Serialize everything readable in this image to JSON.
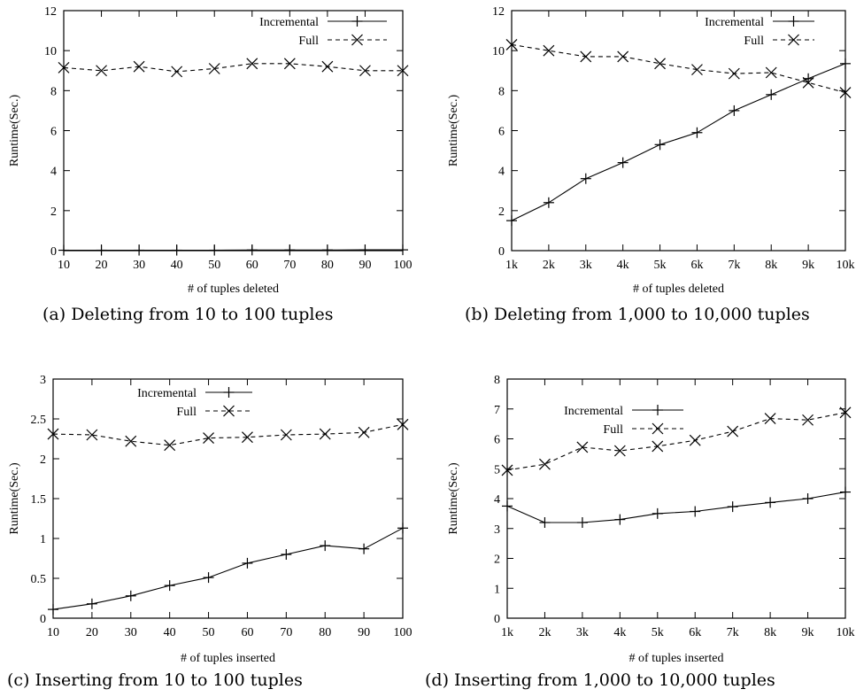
{
  "chart_data": [
    {
      "type": "line",
      "caption": "(a) Deleting from 10 to 100 tuples",
      "xlabel": "# of tuples deleted",
      "ylabel": "Runtime(Sec.)",
      "categories": [
        "10",
        "20",
        "30",
        "40",
        "50",
        "60",
        "70",
        "80",
        "90",
        "100"
      ],
      "ylim": [
        0,
        12
      ],
      "yticks": [
        "0",
        "2",
        "4",
        "6",
        "8",
        "10",
        "12"
      ],
      "legend": "top-right",
      "series": [
        {
          "name": "Incremental",
          "style": "solid",
          "marker": "plus",
          "values": [
            0.02,
            0.02,
            0.02,
            0.02,
            0.02,
            0.03,
            0.03,
            0.03,
            0.04,
            0.04
          ]
        },
        {
          "name": "Full",
          "style": "dashed",
          "marker": "cross",
          "values": [
            9.15,
            9.0,
            9.2,
            8.95,
            9.1,
            9.35,
            9.35,
            9.2,
            9.0,
            9.0
          ]
        }
      ]
    },
    {
      "type": "line",
      "caption": "(b) Deleting from 1,000 to 10,000 tuples",
      "xlabel": "# of tuples deleted",
      "ylabel": "Runtime(Sec.)",
      "categories": [
        "1k",
        "2k",
        "3k",
        "4k",
        "5k",
        "6k",
        "7k",
        "8k",
        "9k",
        "10k"
      ],
      "ylim": [
        0,
        12
      ],
      "yticks": [
        "0",
        "2",
        "4",
        "6",
        "8",
        "10",
        "12"
      ],
      "legend": "top-right",
      "series": [
        {
          "name": "Incremental",
          "style": "solid",
          "marker": "plus",
          "values": [
            1.5,
            2.4,
            3.6,
            4.4,
            5.3,
            5.9,
            7.0,
            7.8,
            8.6,
            9.35
          ]
        },
        {
          "name": "Full",
          "style": "dashed",
          "marker": "cross",
          "values": [
            10.3,
            10.0,
            9.7,
            9.7,
            9.35,
            9.05,
            8.85,
            8.9,
            8.4,
            7.9
          ]
        }
      ]
    },
    {
      "type": "line",
      "caption": "(c) Inserting from 10 to 100 tuples",
      "xlabel": "# of tuples inserted",
      "ylabel": "Runtime(Sec.)",
      "categories": [
        "10",
        "20",
        "30",
        "40",
        "50",
        "60",
        "70",
        "80",
        "90",
        "100"
      ],
      "ylim": [
        0,
        3
      ],
      "yticks": [
        "0",
        "0.5",
        "1",
        "1.5",
        "2",
        "2.5",
        "3"
      ],
      "legend": "top-left",
      "series": [
        {
          "name": "Incremental",
          "style": "solid",
          "marker": "plus",
          "values": [
            0.11,
            0.18,
            0.28,
            0.41,
            0.51,
            0.69,
            0.8,
            0.91,
            0.87,
            1.13
          ]
        },
        {
          "name": "Full",
          "style": "dashed",
          "marker": "cross",
          "values": [
            2.31,
            2.3,
            2.22,
            2.17,
            2.26,
            2.27,
            2.3,
            2.31,
            2.33,
            2.43
          ]
        }
      ]
    },
    {
      "type": "line",
      "caption": "(d) Inserting from 1,000 to 10,000 tuples",
      "xlabel": "# of tuples inserted",
      "ylabel": "Runtime(Sec.)",
      "categories": [
        "1k",
        "2k",
        "3k",
        "4k",
        "5k",
        "6k",
        "7k",
        "8k",
        "9k",
        "10k"
      ],
      "ylim": [
        0,
        8
      ],
      "yticks": [
        "0",
        "1",
        "2",
        "3",
        "4",
        "5",
        "6",
        "7",
        "8"
      ],
      "legend": "top-left",
      "series": [
        {
          "name": "Incremental",
          "style": "solid",
          "marker": "plus",
          "values": [
            3.75,
            3.2,
            3.2,
            3.3,
            3.5,
            3.57,
            3.73,
            3.87,
            4.0,
            4.22
          ]
        },
        {
          "name": "Full",
          "style": "dashed",
          "marker": "cross",
          "values": [
            4.95,
            5.15,
            5.72,
            5.6,
            5.75,
            5.95,
            6.25,
            6.68,
            6.63,
            6.88
          ]
        }
      ]
    }
  ]
}
